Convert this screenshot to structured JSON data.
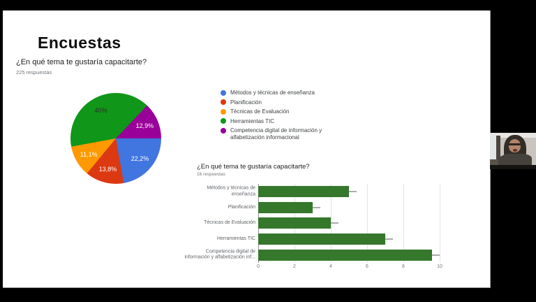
{
  "slide": {
    "title": "Encuestas",
    "pie_section": {
      "question": "¿En qué tema te gustaría capacitarte?",
      "responses": "225 respuestas"
    }
  },
  "palette": {
    "blue": "#4175DF",
    "red": "#DC3912",
    "orange": "#FF9900",
    "green": "#109618",
    "purple": "#990099",
    "bar_green": "#35782C"
  },
  "chart_data": [
    {
      "type": "pie",
      "title": "¿En qué tema te gustaría capacitarte?",
      "subtitle": "225 respuestas",
      "labels": [
        "Métodos y técnicas de enseñanza",
        "Planificación",
        "Técnicas de Evaluación",
        "Herramientas TIC",
        "Competencia digital de información y alfabetización informacional"
      ],
      "values": [
        22.2,
        13.8,
        11.1,
        40,
        12.9
      ],
      "slice_labels": [
        "22,2%",
        "13,8%",
        "11,1%",
        "40%",
        "12,9%"
      ],
      "colors": [
        "#4175DF",
        "#DC3912",
        "#FF9900",
        "#109618",
        "#990099"
      ],
      "slice_label_colors": [
        "#ffffff",
        "#ffffff",
        "#ffffff",
        "#2d2d2d",
        "#ffffff"
      ],
      "legend_position": "right",
      "start": "3-oclock-clockwise"
    },
    {
      "type": "bar",
      "title": "¿En qué tema te gustaría capacitarte?",
      "subtitle": "16 respuestas",
      "categories": [
        "Métodos y técnicas de\nenseñanza",
        "Planificación",
        "Técnicas de Evaluación",
        "Herramientas TIC",
        "Competencia digital de\ninformación y alfabetización inf..."
      ],
      "values": [
        5,
        3,
        4,
        7,
        10
      ],
      "xticks": [
        0,
        2,
        4,
        6,
        8,
        10
      ],
      "xlim": [
        0,
        10
      ],
      "bar_color": "#35782C",
      "orientation": "horizontal",
      "grid": true
    }
  ]
}
